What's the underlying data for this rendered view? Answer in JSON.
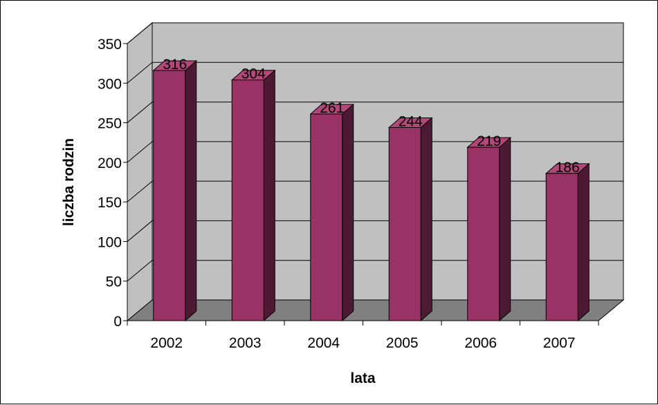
{
  "chart_data": {
    "type": "bar",
    "title": "",
    "categories": [
      "2002",
      "2003",
      "2004",
      "2005",
      "2006",
      "2007"
    ],
    "values": [
      316,
      304,
      261,
      244,
      219,
      186
    ],
    "data_labels": [
      "316",
      "304",
      "261",
      "244",
      "219",
      "186"
    ],
    "xlabel": "lata",
    "ylabel": "liczba rodzin",
    "ylim": [
      0,
      350
    ],
    "yticks": [
      0,
      50,
      100,
      150,
      200,
      250,
      300,
      350
    ],
    "ytick_labels": [
      "0",
      "50",
      "100",
      "150",
      "200",
      "250",
      "300",
      "350"
    ],
    "grid": true,
    "legend": "none",
    "style": "3d-column",
    "colors": {
      "bar_front": "#993366",
      "bar_side": "#4d1a33",
      "bar_top": "#b34777",
      "wall": "#c0c0c0",
      "floor": "#808080",
      "gridline": "#000000"
    }
  }
}
